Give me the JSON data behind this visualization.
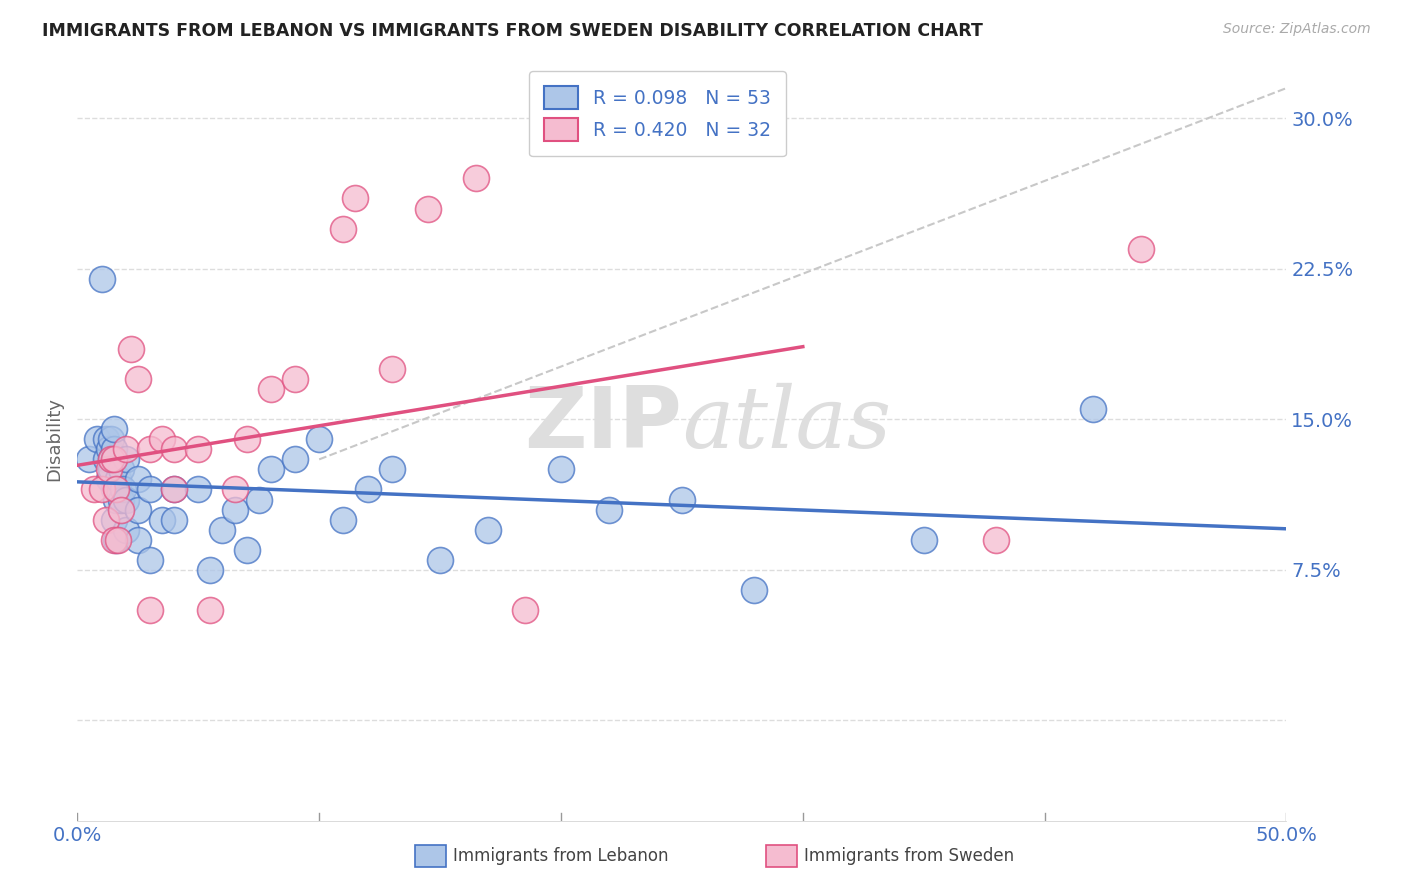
{
  "title": "IMMIGRANTS FROM LEBANON VS IMMIGRANTS FROM SWEDEN DISABILITY CORRELATION CHART",
  "source": "Source: ZipAtlas.com",
  "ylabel_label": "Disability",
  "xlim": [
    0.0,
    0.5
  ],
  "ylim": [
    -0.05,
    0.33
  ],
  "xtick_vals": [
    0.0,
    0.1,
    0.2,
    0.3,
    0.4,
    0.5
  ],
  "xtick_labels": [
    "0.0%",
    "",
    "",
    "",
    "",
    "50.0%"
  ],
  "ytick_vals": [
    0.0,
    0.075,
    0.15,
    0.225,
    0.3
  ],
  "ytick_labels": [
    "",
    "7.5%",
    "15.0%",
    "22.5%",
    "30.0%"
  ],
  "legend_r1": "R = 0.098",
  "legend_n1": "N = 53",
  "legend_r2": "R = 0.420",
  "legend_n2": "N = 32",
  "color_lebanon": "#adc6e8",
  "color_sweden": "#f5bcd0",
  "line_color_lebanon": "#4472c4",
  "line_color_sweden": "#e05080",
  "trendline_dashed_color": "#c8c8c8",
  "background_color": "#ffffff",
  "grid_color": "#dddddd",
  "lebanon_x": [
    0.005,
    0.008,
    0.01,
    0.012,
    0.012,
    0.013,
    0.013,
    0.014,
    0.014,
    0.014,
    0.015,
    0.015,
    0.015,
    0.015,
    0.015,
    0.016,
    0.016,
    0.017,
    0.017,
    0.018,
    0.018,
    0.019,
    0.02,
    0.02,
    0.02,
    0.025,
    0.025,
    0.025,
    0.03,
    0.03,
    0.035,
    0.04,
    0.04,
    0.05,
    0.055,
    0.06,
    0.065,
    0.07,
    0.075,
    0.08,
    0.09,
    0.1,
    0.11,
    0.12,
    0.13,
    0.15,
    0.17,
    0.2,
    0.22,
    0.25,
    0.28,
    0.35,
    0.42
  ],
  "lebanon_y": [
    0.13,
    0.14,
    0.22,
    0.13,
    0.14,
    0.12,
    0.135,
    0.125,
    0.13,
    0.14,
    0.1,
    0.115,
    0.13,
    0.135,
    0.145,
    0.09,
    0.11,
    0.115,
    0.12,
    0.11,
    0.125,
    0.115,
    0.095,
    0.11,
    0.13,
    0.09,
    0.105,
    0.12,
    0.08,
    0.115,
    0.1,
    0.1,
    0.115,
    0.115,
    0.075,
    0.095,
    0.105,
    0.085,
    0.11,
    0.125,
    0.13,
    0.14,
    0.1,
    0.115,
    0.125,
    0.08,
    0.095,
    0.125,
    0.105,
    0.11,
    0.065,
    0.09,
    0.155
  ],
  "sweden_x": [
    0.007,
    0.01,
    0.012,
    0.013,
    0.014,
    0.015,
    0.015,
    0.016,
    0.017,
    0.018,
    0.02,
    0.022,
    0.025,
    0.03,
    0.03,
    0.035,
    0.04,
    0.04,
    0.05,
    0.055,
    0.065,
    0.07,
    0.08,
    0.09,
    0.11,
    0.115,
    0.13,
    0.145,
    0.165,
    0.185,
    0.38,
    0.44
  ],
  "sweden_y": [
    0.115,
    0.115,
    0.1,
    0.125,
    0.13,
    0.09,
    0.13,
    0.115,
    0.09,
    0.105,
    0.135,
    0.185,
    0.17,
    0.135,
    0.055,
    0.14,
    0.115,
    0.135,
    0.135,
    0.055,
    0.115,
    0.14,
    0.165,
    0.17,
    0.245,
    0.26,
    0.175,
    0.255,
    0.27,
    0.055,
    0.09,
    0.235
  ]
}
